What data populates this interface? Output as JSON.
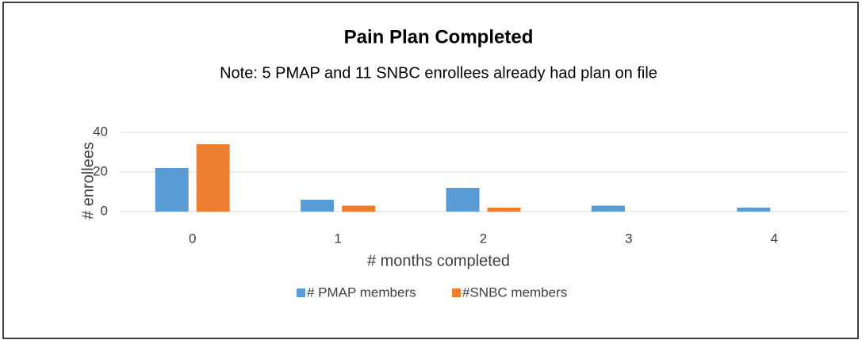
{
  "chart_data": {
    "type": "bar",
    "title": "Pain Plan Completed",
    "subtitle": "Note: 5 PMAP and 11 SNBC enrollees already had plan on file",
    "x_label": "# months completed",
    "y_label": "# enrollees",
    "categories": [
      "0",
      "1",
      "2",
      "3",
      "4"
    ],
    "series": [
      {
        "name": "# PMAP members",
        "color": "#5b9bd5",
        "values": [
          22,
          6,
          12,
          3,
          2
        ]
      },
      {
        "name": "#SNBC members",
        "color": "#ed7d31",
        "values": [
          34,
          3,
          2,
          0,
          0
        ]
      }
    ],
    "ylim": [
      0,
      40
    ],
    "yticks": [
      0,
      20,
      40
    ],
    "grid": true,
    "legend": "bottom"
  }
}
